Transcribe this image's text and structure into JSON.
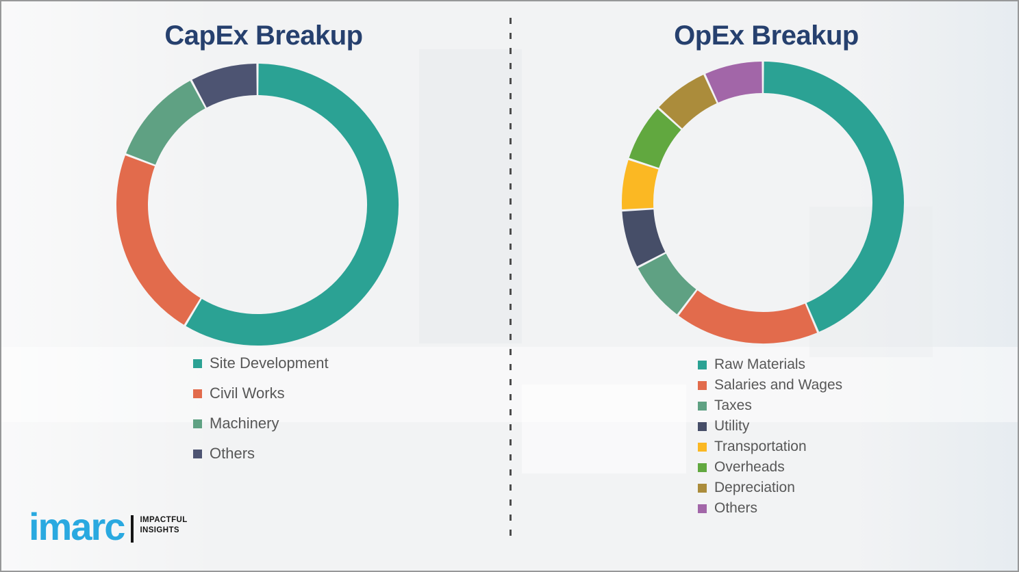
{
  "page": {
    "background_color": "#f2f3f4",
    "border_color": "#979899",
    "divider_style": "vertical-dashed",
    "divider_color": "#4c4c4c",
    "title_color": "#26406e",
    "legend_text_color": "#575757"
  },
  "branding": {
    "logo_text": "imarc",
    "logo_color": "#2aa9e0",
    "tagline_line1": "IMPACTFUL",
    "tagline_line2": "INSIGHTS"
  },
  "chart_data": [
    {
      "type": "pie",
      "subtype": "donut",
      "title": "CapEx Breakup",
      "legend_position": "below-left",
      "start_angle_deg": 0,
      "direction": "clockwise",
      "categories": [
        "Site Development",
        "Civil Works",
        "Machinery",
        "Others"
      ],
      "values": [
        58.6,
        22.2,
        11.4,
        7.8
      ],
      "colors": [
        "#2ba294",
        "#e26b4c",
        "#5fa183",
        "#4d5472"
      ]
    },
    {
      "type": "pie",
      "subtype": "donut",
      "title": "OpEx Breakup",
      "legend_position": "below-left",
      "start_angle_deg": 0,
      "direction": "clockwise",
      "categories": [
        "Raw Materials",
        "Salaries and Wages",
        "Taxes",
        "Utility",
        "Transportation",
        "Overheads",
        "Depreciation",
        "Others"
      ],
      "values": [
        43.6,
        16.7,
        7.1,
        6.7,
        5.9,
        6.7,
        6.5,
        6.8
      ],
      "colors": [
        "#2ba294",
        "#e26b4c",
        "#5fa183",
        "#464e68",
        "#fbb823",
        "#61a83f",
        "#ab8c3b",
        "#a266a8"
      ]
    }
  ]
}
